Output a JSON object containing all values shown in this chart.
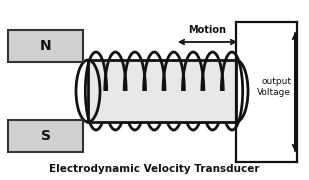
{
  "bg_color": "#ffffff",
  "title": "Electrodynamic Velocity Transducer",
  "title_fontsize": 7.5,
  "magnet_color": "#d0d0d0",
  "magnet_edge": "#333333",
  "cylinder_color": "#e8e8e8",
  "coil_color": "#111111",
  "line_color": "#111111",
  "label_color": "#111111",
  "N_label": "N",
  "S_label": "S",
  "motion_label": "Motion",
  "output_label": "output\nVoltage",
  "coil_loops": 8
}
